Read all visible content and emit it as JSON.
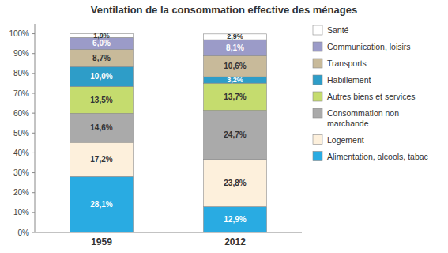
{
  "chart_data": {
    "type": "bar",
    "stacked": true,
    "data_labels": true,
    "grid": false,
    "legend": "right",
    "title": "Ventilation de la consommation effective des ménages",
    "categories": [
      "1959",
      "2012"
    ],
    "series": [
      {
        "name": "Alimentation, alcools, tabac",
        "color": "#29ABE2",
        "values": [
          28.1,
          12.9
        ],
        "value_labels": [
          "28,1%",
          "12,9%"
        ]
      },
      {
        "name": "Logement",
        "color": "#FDF0DC",
        "values": [
          17.2,
          23.8
        ],
        "value_labels": [
          "17,2%",
          "23,8%"
        ]
      },
      {
        "name": "Consommation non\nmarchande",
        "color": "#AAAAAA",
        "values": [
          14.6,
          24.7
        ],
        "value_labels": [
          "14,6%",
          "24,7%"
        ]
      },
      {
        "name": "Autres biens et services",
        "color": "#C5DC6E",
        "values": [
          13.5,
          13.7
        ],
        "value_labels": [
          "13,5%",
          "13,7%"
        ]
      },
      {
        "name": "Habillement",
        "color": "#2E9DC8",
        "values": [
          10.0,
          3.2
        ],
        "value_labels": [
          "10,0%",
          "3,2%"
        ]
      },
      {
        "name": "Transports",
        "color": "#C8BA9A",
        "values": [
          8.7,
          10.6
        ],
        "value_labels": [
          "8,7%",
          "10,6%"
        ]
      },
      {
        "name": "Communication, loisirs",
        "color": "#9B9BC8",
        "values": [
          6.0,
          8.1
        ],
        "value_labels": [
          "6,0%",
          "8,1%"
        ]
      },
      {
        "name": "Santé",
        "color": "#FFFFFF",
        "values": [
          1.9,
          2.9
        ],
        "value_labels": [
          "1,9%",
          "2,9%"
        ]
      }
    ],
    "ylim": [
      0,
      105
    ],
    "yticks": [
      {
        "value": 0,
        "label": "0%"
      },
      {
        "value": 10,
        "label": "10%"
      },
      {
        "value": 20,
        "label": "20%"
      },
      {
        "value": 30,
        "label": "30%"
      },
      {
        "value": 40,
        "label": "40%"
      },
      {
        "value": 50,
        "label": "50%"
      },
      {
        "value": 60,
        "label": "60%"
      },
      {
        "value": 70,
        "label": "70%"
      },
      {
        "value": 80,
        "label": "80%"
      },
      {
        "value": 90,
        "label": "90%"
      },
      {
        "value": 100,
        "label": "100%"
      }
    ]
  }
}
